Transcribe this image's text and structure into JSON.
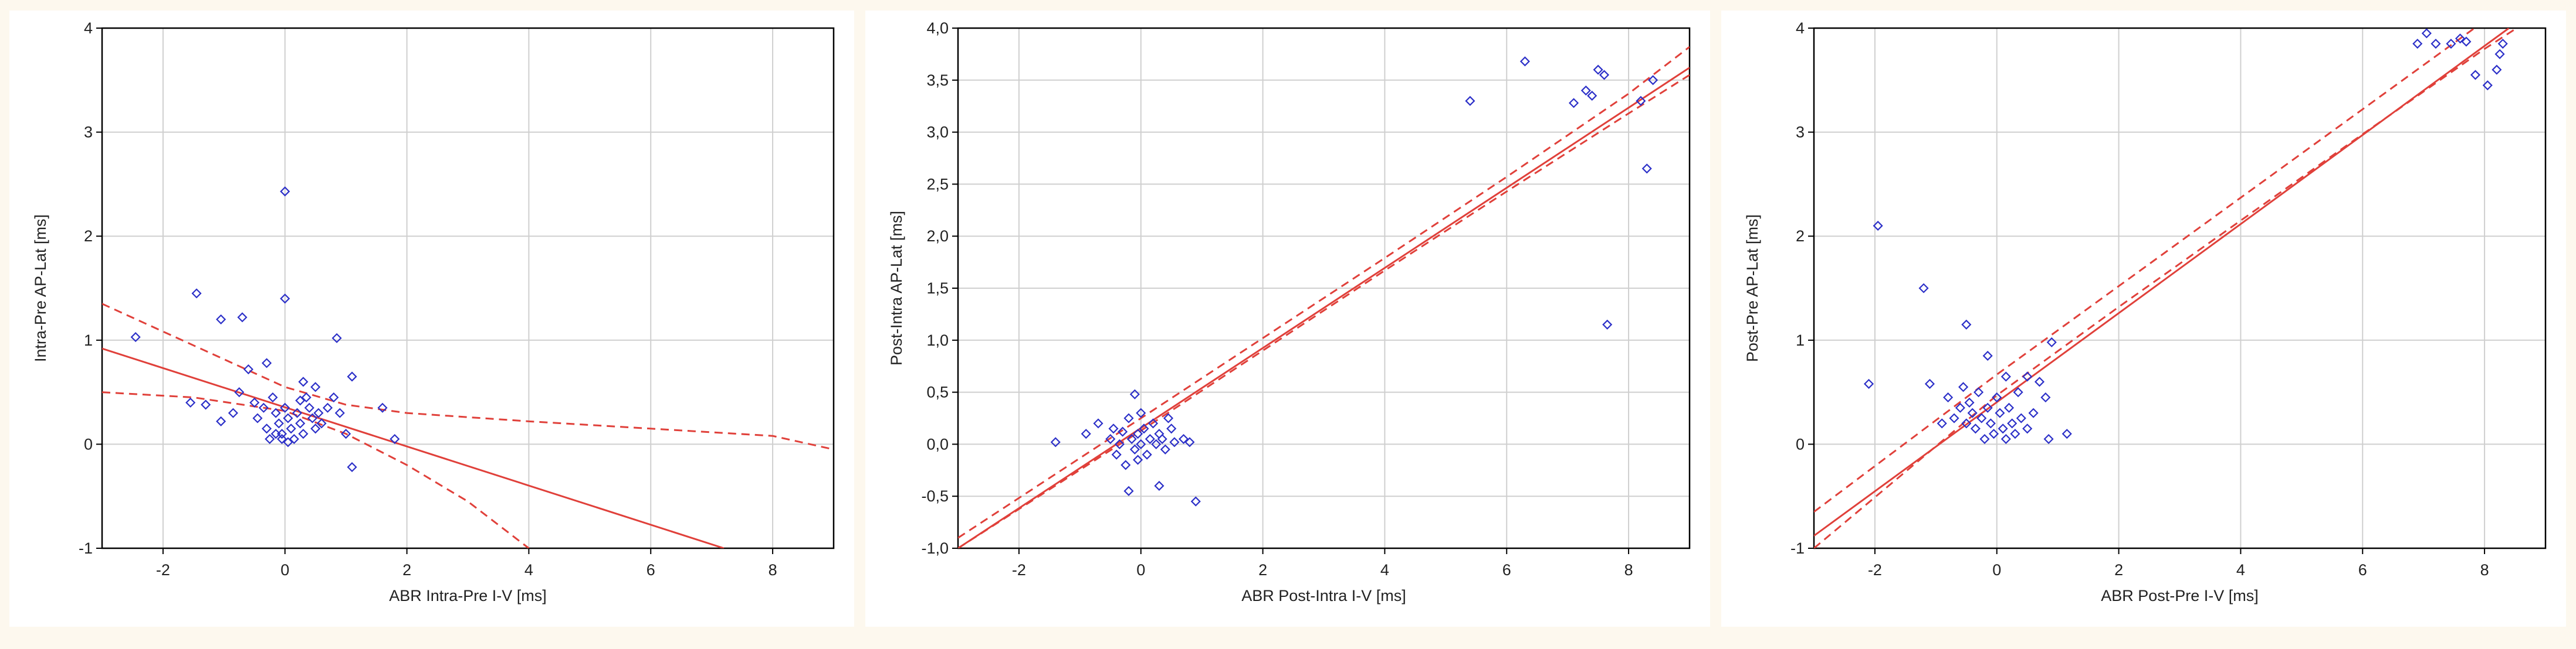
{
  "colors": {
    "points": "#2b2fc8",
    "fit": "#e0403a",
    "grid": "#cfcfcf",
    "frame": "#000000",
    "background": "#fdf8ee"
  },
  "chart_data": [
    {
      "type": "scatter",
      "xlabel": "ABR Intra-Pre I-V [ms]",
      "ylabel": "Intra-Pre AP-Lat [ms]",
      "xlim": [
        -3,
        9
      ],
      "ylim": [
        -1,
        4
      ],
      "xticks": [
        -2,
        0,
        2,
        4,
        6,
        8
      ],
      "yticks": [
        -1,
        0,
        1,
        2,
        3,
        4
      ],
      "ytick_labels": [
        "-1",
        "0",
        "1",
        "2",
        "3",
        "4"
      ],
      "grid": true,
      "points": [
        [
          -2.45,
          1.03
        ],
        [
          -1.45,
          1.45
        ],
        [
          -1.05,
          1.2
        ],
        [
          -0.7,
          1.22
        ],
        [
          -0.3,
          0.78
        ],
        [
          0.0,
          2.43
        ],
        [
          0.0,
          1.4
        ],
        [
          0.85,
          1.02
        ],
        [
          1.1,
          0.65
        ],
        [
          -1.55,
          0.4
        ],
        [
          -1.3,
          0.38
        ],
        [
          -1.05,
          0.22
        ],
        [
          -0.85,
          0.3
        ],
        [
          -0.75,
          0.5
        ],
        [
          -0.6,
          0.72
        ],
        [
          -0.5,
          0.4
        ],
        [
          -0.45,
          0.25
        ],
        [
          -0.35,
          0.35
        ],
        [
          -0.3,
          0.15
        ],
        [
          -0.25,
          0.05
        ],
        [
          -0.2,
          0.45
        ],
        [
          -0.15,
          0.3
        ],
        [
          -0.1,
          0.2
        ],
        [
          -0.05,
          0.1
        ],
        [
          0.0,
          0.35
        ],
        [
          0.05,
          0.25
        ],
        [
          0.1,
          0.15
        ],
        [
          0.15,
          0.05
        ],
        [
          0.2,
          0.3
        ],
        [
          0.25,
          0.2
        ],
        [
          0.3,
          0.1
        ],
        [
          0.35,
          0.45
        ],
        [
          0.4,
          0.35
        ],
        [
          0.45,
          0.25
        ],
        [
          0.5,
          0.15
        ],
        [
          0.55,
          0.3
        ],
        [
          0.6,
          0.2
        ],
        [
          0.7,
          0.35
        ],
        [
          0.8,
          0.45
        ],
        [
          0.9,
          0.3
        ],
        [
          1.0,
          0.1
        ],
        [
          1.1,
          -0.22
        ],
        [
          1.6,
          0.35
        ],
        [
          1.8,
          0.05
        ],
        [
          0.05,
          0.02
        ],
        [
          -0.05,
          0.05
        ],
        [
          0.3,
          0.6
        ],
        [
          0.5,
          0.55
        ],
        [
          0.25,
          0.42
        ],
        [
          -0.15,
          0.1
        ]
      ],
      "fit_line": [
        [
          -3,
          0.92
        ],
        [
          7.2,
          -1.0
        ]
      ],
      "ci_upper": [
        [
          -3,
          1.35
        ],
        [
          -1.5,
          0.95
        ],
        [
          0,
          0.55
        ],
        [
          1,
          0.38
        ],
        [
          2,
          0.3
        ],
        [
          4,
          0.22
        ],
        [
          6,
          0.15
        ],
        [
          8,
          0.08
        ],
        [
          9,
          -0.05
        ]
      ],
      "ci_lower": [
        [
          -3,
          0.5
        ],
        [
          -1.5,
          0.45
        ],
        [
          0,
          0.32
        ],
        [
          1,
          0.1
        ],
        [
          2,
          -0.2
        ],
        [
          3,
          -0.55
        ],
        [
          4,
          -1.0
        ]
      ]
    },
    {
      "type": "scatter",
      "xlabel": "ABR Post-Intra I-V [ms]",
      "ylabel": "Post-Intra AP-Lat [ms]",
      "xlim": [
        -3,
        9
      ],
      "ylim": [
        -1,
        4
      ],
      "xticks": [
        -2,
        0,
        2,
        4,
        6,
        8
      ],
      "yticks": [
        -1,
        -0.5,
        0,
        0.5,
        1,
        1.5,
        2,
        2.5,
        3,
        3.5,
        4
      ],
      "ytick_labels": [
        "-1,0",
        "-0,5",
        "0,0",
        "0,5",
        "1,0",
        "1,5",
        "2,0",
        "2,5",
        "3,0",
        "3,5",
        "4,0"
      ],
      "grid": true,
      "points": [
        [
          5.4,
          3.3
        ],
        [
          6.3,
          3.68
        ],
        [
          7.1,
          3.28
        ],
        [
          7.3,
          3.4
        ],
        [
          7.4,
          3.35
        ],
        [
          7.5,
          3.6
        ],
        [
          7.6,
          3.55
        ],
        [
          8.2,
          3.3
        ],
        [
          8.4,
          3.5
        ],
        [
          8.3,
          2.65
        ],
        [
          7.65,
          1.15
        ],
        [
          -0.1,
          0.48
        ],
        [
          -1.4,
          0.02
        ],
        [
          -0.9,
          0.1
        ],
        [
          -0.7,
          0.2
        ],
        [
          -0.5,
          0.05
        ],
        [
          -0.45,
          0.15
        ],
        [
          -0.4,
          -0.1
        ],
        [
          -0.35,
          0.0
        ],
        [
          -0.3,
          0.12
        ],
        [
          -0.25,
          -0.2
        ],
        [
          -0.2,
          0.25
        ],
        [
          -0.15,
          0.05
        ],
        [
          -0.1,
          -0.05
        ],
        [
          -0.05,
          0.1
        ],
        [
          0.0,
          0.0
        ],
        [
          0.05,
          0.15
        ],
        [
          0.1,
          -0.1
        ],
        [
          0.15,
          0.05
        ],
        [
          0.2,
          0.2
        ],
        [
          0.25,
          0.0
        ],
        [
          0.3,
          0.1
        ],
        [
          0.35,
          0.05
        ],
        [
          0.4,
          -0.05
        ],
        [
          0.5,
          0.15
        ],
        [
          0.55,
          0.02
        ],
        [
          0.7,
          0.05
        ],
        [
          0.8,
          0.02
        ],
        [
          -0.2,
          -0.45
        ],
        [
          0.3,
          -0.4
        ],
        [
          0.9,
          -0.55
        ],
        [
          -0.05,
          -0.15
        ],
        [
          0.0,
          0.3
        ],
        [
          0.45,
          0.25
        ]
      ],
      "fit_line": [
        [
          -3,
          -1.0
        ],
        [
          9,
          3.62
        ]
      ],
      "ci_upper": [
        [
          -3,
          -0.9
        ],
        [
          0,
          0.25
        ],
        [
          2,
          1.02
        ],
        [
          4,
          1.79
        ],
        [
          6,
          2.57
        ],
        [
          8,
          3.37
        ],
        [
          9,
          3.82
        ]
      ],
      "ci_lower": [
        [
          -3,
          -1.0
        ],
        [
          0,
          0.13
        ],
        [
          2,
          0.9
        ],
        [
          4,
          1.67
        ],
        [
          6,
          2.43
        ],
        [
          8,
          3.18
        ],
        [
          9,
          3.55
        ]
      ]
    },
    {
      "type": "scatter",
      "xlabel": "ABR Post-Pre I-V [ms]",
      "ylabel": "Post-Pre AP-Lat [ms]",
      "xlim": [
        -3,
        9
      ],
      "ylim": [
        -1,
        4
      ],
      "xticks": [
        -2,
        0,
        2,
        4,
        6,
        8
      ],
      "yticks": [
        -1,
        0,
        1,
        2,
        3,
        4
      ],
      "ytick_labels": [
        "-1",
        "0",
        "1",
        "2",
        "3",
        "4"
      ],
      "grid": true,
      "points": [
        [
          -1.95,
          2.1
        ],
        [
          -1.2,
          1.5
        ],
        [
          -0.5,
          1.15
        ],
        [
          -0.15,
          0.85
        ],
        [
          0.9,
          0.98
        ],
        [
          -2.1,
          0.58
        ],
        [
          -1.1,
          0.58
        ],
        [
          -0.8,
          0.45
        ],
        [
          -0.6,
          0.35
        ],
        [
          -0.55,
          0.55
        ],
        [
          -0.5,
          0.2
        ],
        [
          -0.45,
          0.4
        ],
        [
          -0.4,
          0.3
        ],
        [
          -0.35,
          0.15
        ],
        [
          -0.3,
          0.5
        ],
        [
          -0.25,
          0.25
        ],
        [
          -0.2,
          0.05
        ],
        [
          -0.15,
          0.35
        ],
        [
          -0.1,
          0.2
        ],
        [
          -0.05,
          0.1
        ],
        [
          0.0,
          0.45
        ],
        [
          0.05,
          0.3
        ],
        [
          0.1,
          0.15
        ],
        [
          0.15,
          0.05
        ],
        [
          0.2,
          0.35
        ],
        [
          0.25,
          0.2
        ],
        [
          0.3,
          0.1
        ],
        [
          0.35,
          0.5
        ],
        [
          0.4,
          0.25
        ],
        [
          0.5,
          0.15
        ],
        [
          0.6,
          0.3
        ],
        [
          0.7,
          0.6
        ],
        [
          0.8,
          0.45
        ],
        [
          0.85,
          0.05
        ],
        [
          1.15,
          0.1
        ],
        [
          -0.9,
          0.2
        ],
        [
          -0.7,
          0.25
        ],
        [
          0.15,
          0.65
        ],
        [
          0.5,
          0.65
        ],
        [
          7.05,
          3.95
        ],
        [
          7.2,
          3.85
        ],
        [
          7.45,
          3.85
        ],
        [
          7.7,
          3.87
        ],
        [
          7.85,
          3.55
        ],
        [
          8.05,
          3.45
        ],
        [
          8.2,
          3.6
        ],
        [
          8.25,
          3.75
        ],
        [
          8.3,
          3.85
        ],
        [
          6.9,
          3.85
        ],
        [
          7.6,
          3.9
        ]
      ],
      "fit_line": [
        [
          -3,
          -0.88
        ],
        [
          8.4,
          4.0
        ]
      ],
      "ci_upper": [
        [
          -3,
          -0.65
        ],
        [
          0,
          0.67
        ],
        [
          2,
          1.52
        ],
        [
          4,
          2.37
        ],
        [
          6,
          3.22
        ],
        [
          8,
          4.07
        ],
        [
          9,
          4.5
        ]
      ],
      "ci_lower": [
        [
          -3,
          -1.0
        ],
        [
          0,
          0.47
        ],
        [
          2,
          1.32
        ],
        [
          4,
          2.15
        ],
        [
          6,
          2.98
        ],
        [
          8,
          3.8
        ],
        [
          9,
          4.18
        ]
      ]
    }
  ]
}
